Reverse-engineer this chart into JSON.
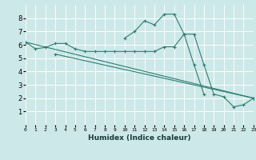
{
  "xlabel": "Humidex (Indice chaleur)",
  "bg_color": "#cce8e8",
  "grid_color": "#ffffff",
  "line_color": "#2e7d72",
  "xlim": [
    0,
    23
  ],
  "ylim": [
    0,
    9
  ],
  "xticks": [
    0,
    1,
    2,
    3,
    4,
    5,
    6,
    7,
    8,
    9,
    10,
    11,
    12,
    13,
    14,
    15,
    16,
    17,
    18,
    19,
    20,
    21,
    22,
    23
  ],
  "yticks": [
    1,
    2,
    3,
    4,
    5,
    6,
    7,
    8
  ],
  "series": [
    {
      "x": [
        0,
        1,
        2,
        3,
        4,
        5,
        6,
        7,
        8,
        9,
        10,
        11,
        12,
        13,
        14,
        15,
        16,
        17,
        18,
        19,
        20,
        21,
        22,
        23
      ],
      "y": [
        6.2,
        5.7,
        5.8,
        6.1,
        6.1,
        5.7,
        5.5,
        5.5,
        5.5,
        5.5,
        5.5,
        5.5,
        5.5,
        5.5,
        5.85,
        5.85,
        6.8,
        6.8,
        4.5,
        2.3,
        2.1,
        1.35,
        1.5,
        2.0
      ]
    },
    {
      "x": [
        0,
        23
      ],
      "y": [
        6.2,
        2.0
      ]
    },
    {
      "x": [
        3,
        23
      ],
      "y": [
        5.3,
        2.0
      ]
    },
    {
      "x": [
        10,
        11,
        12,
        13,
        14,
        15,
        16,
        17,
        18
      ],
      "y": [
        6.5,
        7.0,
        7.8,
        7.5,
        8.3,
        8.3,
        6.8,
        4.5,
        2.3
      ]
    }
  ]
}
